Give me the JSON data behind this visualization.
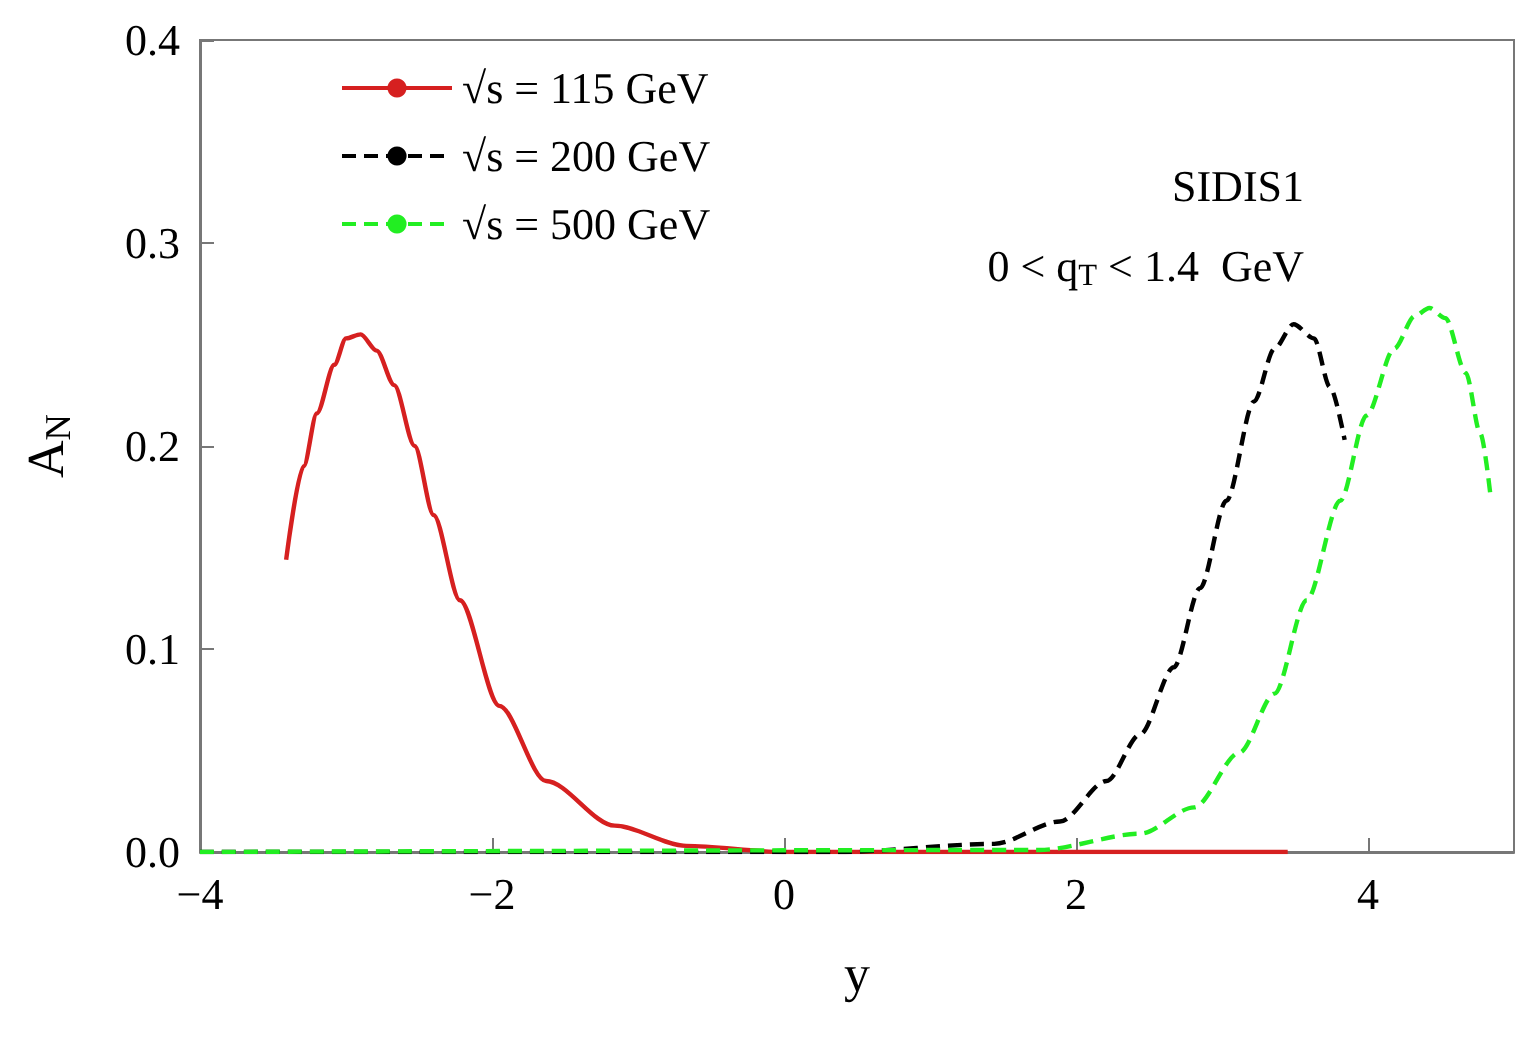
{
  "chart_data": {
    "type": "line",
    "xlabel": "y",
    "ylabel": "A$_{N}$",
    "xlim": [
      -4,
      5
    ],
    "xticks": [
      -4,
      -2,
      0,
      2,
      4
    ],
    "ylim": [
      0,
      0.4
    ],
    "yticks": [
      {
        "value": 0,
        "label": "0.0"
      },
      {
        "value": 0.1,
        "label": "0.1"
      },
      {
        "value": 0.2,
        "label": "0.2"
      },
      {
        "value": 0.3,
        "label": "0.3"
      },
      {
        "value": 0.4,
        "label": "0.4"
      }
    ],
    "grid": false,
    "legend": "top left",
    "marker": "none",
    "annotations": [
      "SIDIS1",
      "0 < q$_{T}$ < 1.4  GeV"
    ],
    "series": [
      {
        "name": "√s = 115 GeV",
        "color": "#d62020",
        "line_style": "solid",
        "x": [
          -3.41,
          -3.29,
          -3.2,
          -3.08,
          -3.0,
          -2.9,
          -2.79,
          -2.67,
          -2.53,
          -2.4,
          -2.22,
          -1.95,
          -1.63,
          -1.16,
          -0.67,
          0,
          3.45
        ],
        "values": [
          0.144,
          0.19,
          0.216,
          0.24,
          0.253,
          0.255,
          0.247,
          0.23,
          0.2,
          0.166,
          0.124,
          0.072,
          0.035,
          0.013,
          0.003,
          0,
          0
        ]
      },
      {
        "name": "√s = 200 GeV",
        "color": "#000000",
        "line_style": "dashed",
        "x": [
          -4,
          0.38,
          1.44,
          1.89,
          2.21,
          2.44,
          2.67,
          2.85,
          3.03,
          3.22,
          3.36,
          3.49,
          3.63,
          3.74,
          3.84
        ],
        "values": [
          0,
          0,
          0.004,
          0.015,
          0.035,
          0.058,
          0.091,
          0.13,
          0.173,
          0.222,
          0.248,
          0.26,
          0.253,
          0.229,
          0.203
        ]
      },
      {
        "name": "√s = 500 GeV",
        "color": "#22ee22",
        "line_style": "dashed",
        "x": [
          -4,
          1.75,
          2.44,
          2.81,
          3.12,
          3.36,
          3.58,
          3.81,
          3.99,
          4.18,
          4.32,
          4.42,
          4.53,
          4.67,
          4.77,
          4.84
        ],
        "values": [
          0,
          0.001,
          0.009,
          0.022,
          0.049,
          0.078,
          0.124,
          0.173,
          0.215,
          0.248,
          0.264,
          0.268,
          0.263,
          0.236,
          0.206,
          0.175
        ]
      }
    ]
  }
}
